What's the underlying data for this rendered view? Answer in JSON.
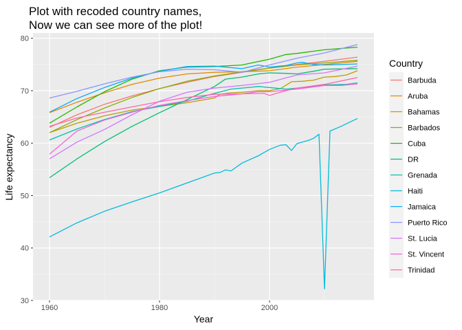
{
  "chart_data": {
    "type": "line",
    "title": [
      "Plot with recoded country names,",
      "Now we can see more of the plot!"
    ],
    "xlabel": "Year",
    "ylabel": "Life expectancy",
    "xlim": [
      1957,
      2019
    ],
    "ylim": [
      30,
      81
    ],
    "x_ticks": [
      1960,
      1980,
      2000
    ],
    "y_ticks": [
      30,
      40,
      50,
      60,
      70,
      80
    ],
    "grid": true,
    "legend": {
      "title": "Country",
      "position": "right"
    },
    "series": [
      {
        "name": "Barbuda",
        "color": "#F8766D",
        "points": [
          [
            1960,
            63.0
          ],
          [
            1965,
            65.4
          ],
          [
            1970,
            67.4
          ],
          [
            1975,
            69.0
          ],
          [
            1980,
            70.4
          ],
          [
            1985,
            71.6
          ],
          [
            1990,
            72.7
          ],
          [
            1995,
            73.5
          ],
          [
            2000,
            74.3
          ],
          [
            2005,
            75.0
          ],
          [
            2010,
            75.6
          ],
          [
            2016,
            76.4
          ]
        ]
      },
      {
        "name": "Aruba",
        "color": "#E18A00",
        "points": [
          [
            1960,
            65.8
          ],
          [
            1965,
            67.8
          ],
          [
            1970,
            69.6
          ],
          [
            1975,
            71.2
          ],
          [
            1980,
            72.4
          ],
          [
            1985,
            73.2
          ],
          [
            1990,
            73.5
          ],
          [
            1995,
            73.6
          ],
          [
            2000,
            73.8
          ],
          [
            2005,
            74.5
          ],
          [
            2010,
            75.0
          ],
          [
            2016,
            75.6
          ]
        ]
      },
      {
        "name": "Bahamas",
        "color": "#BE9C00",
        "points": [
          [
            1960,
            62.0
          ],
          [
            1965,
            63.8
          ],
          [
            1970,
            65.2
          ],
          [
            1975,
            66.3
          ],
          [
            1980,
            67.0
          ],
          [
            1985,
            67.7
          ],
          [
            1990,
            68.6
          ],
          [
            1991,
            69.3
          ],
          [
            1993,
            69.6
          ],
          [
            1995,
            69.7
          ],
          [
            1998,
            70.0
          ],
          [
            2000,
            70.0
          ],
          [
            2002,
            70.4
          ],
          [
            2004,
            71.7
          ],
          [
            2006,
            71.8
          ],
          [
            2008,
            72.0
          ],
          [
            2010,
            72.6
          ],
          [
            2012,
            72.7
          ],
          [
            2014,
            73.0
          ],
          [
            2016,
            73.8
          ]
        ]
      },
      {
        "name": "Barbados",
        "color": "#8CAB00",
        "points": [
          [
            1960,
            62.0
          ],
          [
            1965,
            64.5
          ],
          [
            1970,
            66.7
          ],
          [
            1975,
            68.7
          ],
          [
            1980,
            70.4
          ],
          [
            1985,
            71.8
          ],
          [
            1990,
            72.8
          ],
          [
            1995,
            73.6
          ],
          [
            2000,
            74.3
          ],
          [
            2005,
            74.9
          ],
          [
            2010,
            75.3
          ],
          [
            2016,
            75.8
          ]
        ]
      },
      {
        "name": "Cuba",
        "color": "#24B700",
        "points": [
          [
            1960,
            63.8
          ],
          [
            1965,
            66.9
          ],
          [
            1970,
            69.8
          ],
          [
            1975,
            72.2
          ],
          [
            1980,
            73.8
          ],
          [
            1985,
            74.5
          ],
          [
            1990,
            74.6
          ],
          [
            1995,
            74.9
          ],
          [
            2000,
            76.0
          ],
          [
            2003,
            76.9
          ],
          [
            2005,
            77.1
          ],
          [
            2010,
            77.8
          ],
          [
            2016,
            78.3
          ]
        ]
      },
      {
        "name": "DR",
        "color": "#00BE70",
        "points": [
          [
            1960,
            53.4
          ],
          [
            1965,
            57.0
          ],
          [
            1970,
            60.3
          ],
          [
            1975,
            63.2
          ],
          [
            1980,
            65.8
          ],
          [
            1985,
            68.3
          ],
          [
            1990,
            70.8
          ],
          [
            1992,
            72.2
          ],
          [
            1995,
            72.6
          ],
          [
            1998,
            73.2
          ],
          [
            2000,
            73.4
          ],
          [
            2003,
            73.3
          ],
          [
            2005,
            73.2
          ],
          [
            2008,
            73.7
          ],
          [
            2010,
            74.1
          ],
          [
            2016,
            74.2
          ]
        ]
      },
      {
        "name": "Grenada",
        "color": "#00C1AB",
        "points": [
          [
            1960,
            60.6
          ],
          [
            1965,
            62.7
          ],
          [
            1970,
            64.5
          ],
          [
            1975,
            66.0
          ],
          [
            1980,
            67.0
          ],
          [
            1985,
            68.0
          ],
          [
            1990,
            69.5
          ],
          [
            1993,
            70.3
          ],
          [
            1995,
            70.5
          ],
          [
            1998,
            70.8
          ],
          [
            2000,
            70.6
          ],
          [
            2003,
            70.3
          ],
          [
            2005,
            70.5
          ],
          [
            2008,
            70.8
          ],
          [
            2010,
            71.1
          ],
          [
            2014,
            71.2
          ],
          [
            2016,
            71.5
          ]
        ]
      },
      {
        "name": "Haiti",
        "color": "#00BBDA",
        "points": [
          [
            1960,
            42.1
          ],
          [
            1965,
            44.8
          ],
          [
            1970,
            47.0
          ],
          [
            1975,
            48.8
          ],
          [
            1980,
            50.5
          ],
          [
            1985,
            52.4
          ],
          [
            1990,
            54.3
          ],
          [
            1991,
            54.4
          ],
          [
            1992,
            54.9
          ],
          [
            1993,
            54.7
          ],
          [
            1995,
            56.2
          ],
          [
            1998,
            57.6
          ],
          [
            2000,
            58.8
          ],
          [
            2002,
            59.6
          ],
          [
            2003,
            59.7
          ],
          [
            2004,
            58.6
          ],
          [
            2005,
            59.9
          ],
          [
            2007,
            60.5
          ],
          [
            2008,
            60.9
          ],
          [
            2009,
            61.7
          ],
          [
            2010,
            32.2
          ],
          [
            2011,
            62.3
          ],
          [
            2013,
            63.2
          ],
          [
            2016,
            64.7
          ]
        ]
      },
      {
        "name": "Jamaica",
        "color": "#00ACFC",
        "points": [
          [
            1960,
            65.9
          ],
          [
            1965,
            68.5
          ],
          [
            1970,
            70.6
          ],
          [
            1975,
            72.4
          ],
          [
            1980,
            73.7
          ],
          [
            1985,
            74.6
          ],
          [
            1990,
            74.7
          ],
          [
            1995,
            74.2
          ],
          [
            1998,
            74.9
          ],
          [
            2000,
            74.5
          ],
          [
            2003,
            74.8
          ],
          [
            2005,
            75.3
          ],
          [
            2006,
            75.4
          ],
          [
            2008,
            75.0
          ],
          [
            2010,
            74.9
          ],
          [
            2016,
            75.1
          ]
        ]
      },
      {
        "name": "Puerto Rico",
        "color": "#8B93FF",
        "points": [
          [
            1960,
            68.6
          ],
          [
            1965,
            69.9
          ],
          [
            1970,
            71.3
          ],
          [
            1975,
            72.6
          ],
          [
            1980,
            73.6
          ],
          [
            1985,
            74.1
          ],
          [
            1990,
            74.0
          ],
          [
            1995,
            73.5
          ],
          [
            2000,
            74.9
          ],
          [
            2005,
            76.2
          ],
          [
            2010,
            77.2
          ],
          [
            2016,
            78.8
          ]
        ]
      },
      {
        "name": "St. Lucia",
        "color": "#D575FE",
        "points": [
          [
            1960,
            57.0
          ],
          [
            1965,
            60.2
          ],
          [
            1970,
            62.6
          ],
          [
            1975,
            65.4
          ],
          [
            1980,
            68.0
          ],
          [
            1985,
            69.7
          ],
          [
            1990,
            70.5
          ],
          [
            1995,
            71.0
          ],
          [
            2000,
            71.6
          ],
          [
            2005,
            73.0
          ],
          [
            2010,
            73.4
          ],
          [
            2016,
            74.7
          ]
        ]
      },
      {
        "name": "St. Vincent",
        "color": "#F962DD",
        "points": [
          [
            1960,
            57.9
          ],
          [
            1965,
            62.3
          ],
          [
            1970,
            64.4
          ],
          [
            1975,
            65.9
          ],
          [
            1980,
            67.2
          ],
          [
            1985,
            68.1
          ],
          [
            1990,
            68.9
          ],
          [
            1995,
            69.4
          ],
          [
            1998,
            69.8
          ],
          [
            2000,
            69.8
          ],
          [
            2005,
            70.3
          ],
          [
            2010,
            71.0
          ],
          [
            2013,
            71.0
          ],
          [
            2016,
            71.3
          ]
        ]
      },
      {
        "name": "Trinidad",
        "color": "#FF65AC",
        "points": [
          [
            1960,
            63.2
          ],
          [
            1965,
            64.8
          ],
          [
            1970,
            65.9
          ],
          [
            1975,
            66.9
          ],
          [
            1980,
            67.9
          ],
          [
            1985,
            68.7
          ],
          [
            1990,
            69.3
          ],
          [
            1995,
            69.4
          ],
          [
            1999,
            69.5
          ],
          [
            2000,
            69.1
          ],
          [
            2003,
            70.0
          ],
          [
            2005,
            70.5
          ],
          [
            2010,
            71.2
          ],
          [
            2016,
            72.5
          ]
        ]
      }
    ]
  }
}
